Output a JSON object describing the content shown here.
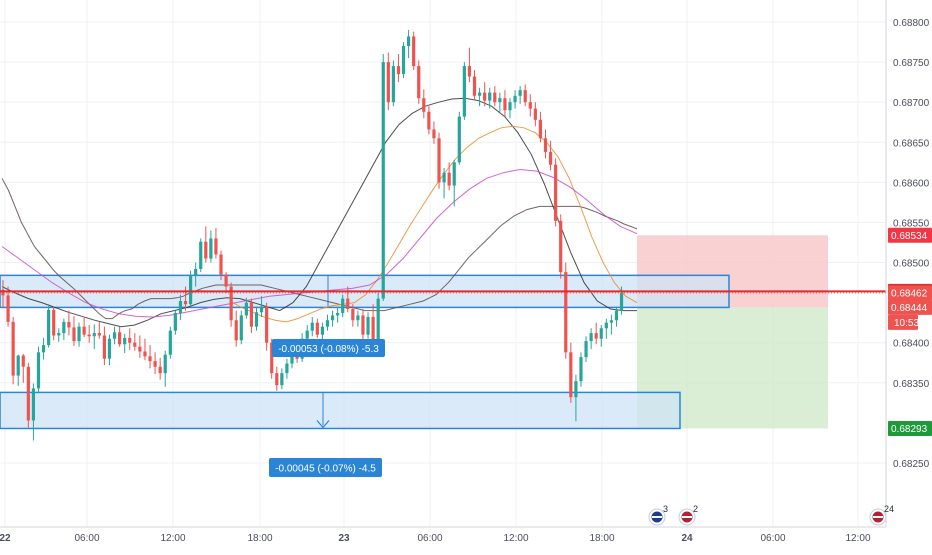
{
  "chart_data": {
    "type": "candlestick",
    "title": "",
    "xlabel": "",
    "ylabel": "",
    "grid": true,
    "ylim": [
      0.6822,
      0.6881
    ],
    "y_ticks": [
      "0.68800",
      "0.68750",
      "0.68700",
      "0.68650",
      "0.68600",
      "0.68550",
      "0.68500",
      "0.68400",
      "0.68350",
      "0.68250"
    ],
    "x_ticks": [
      "22",
      "06:00",
      "12:00",
      "18:00",
      "23",
      "06:00",
      "12:00",
      "18:00",
      "24",
      "06:00",
      "12:00"
    ],
    "price_labels": [
      {
        "value": "0.68534",
        "kind": "stop"
      },
      {
        "value": "0.68464",
        "kind": "line"
      },
      {
        "value": "0.68462",
        "kind": "current"
      },
      {
        "value": "0.68444",
        "kind": "entry"
      },
      {
        "value": "10:53",
        "kind": "countdown"
      },
      {
        "value": "0.68293",
        "kind": "target"
      }
    ],
    "horizontal_line": 0.68464,
    "zones": [
      {
        "name": "upper-zone",
        "top": 0.68484,
        "bottom": 0.68444
      },
      {
        "name": "lower-zone",
        "top": 0.68338,
        "bottom": 0.68293
      }
    ],
    "position": {
      "stop": 0.68534,
      "entry": 0.68444,
      "target": 0.68293
    },
    "measurements": [
      "-0.00053 (-0.08%) -5.3",
      "-0.00045 (-0.07%) -4.5"
    ],
    "event_icons": [
      {
        "flag": "AU",
        "count": "3"
      },
      {
        "flag": "US",
        "count": "2"
      },
      {
        "flag": "US",
        "count": "24"
      }
    ],
    "colors": {
      "up": "#26a69a",
      "down": "#ef5350",
      "zone_fill": "#cfe3f5",
      "zone_line": "#2a85d6",
      "hline": "#e32b2b",
      "stop_fill": "#f7c6c7",
      "target_fill": "#cfeac9",
      "label_stop": "#f23645",
      "label_target": "#1e9a3a",
      "label_blue": "#2a85d6"
    },
    "candles": [
      [
        0.68466,
        0.68478,
        0.68443,
        0.68459
      ],
      [
        0.68459,
        0.6847,
        0.6842,
        0.68426
      ],
      [
        0.68426,
        0.68432,
        0.68348,
        0.68359
      ],
      [
        0.68359,
        0.68385,
        0.68346,
        0.68384
      ],
      [
        0.68384,
        0.68386,
        0.6835,
        0.6837
      ],
      [
        0.6837,
        0.68375,
        0.68294,
        0.68303
      ],
      [
        0.68303,
        0.68349,
        0.68278,
        0.68343
      ],
      [
        0.68343,
        0.68395,
        0.68337,
        0.68388
      ],
      [
        0.68388,
        0.68406,
        0.68379,
        0.68397
      ],
      [
        0.68397,
        0.68448,
        0.68394,
        0.68441
      ],
      [
        0.68441,
        0.68445,
        0.68403,
        0.68409
      ],
      [
        0.68409,
        0.68418,
        0.68401,
        0.68412
      ],
      [
        0.68412,
        0.6843,
        0.68403,
        0.68426
      ],
      [
        0.68426,
        0.6844,
        0.68409,
        0.68419
      ],
      [
        0.68419,
        0.68433,
        0.68396,
        0.68402
      ],
      [
        0.68402,
        0.68425,
        0.68395,
        0.6842
      ],
      [
        0.6842,
        0.68431,
        0.68407,
        0.6841
      ],
      [
        0.6841,
        0.68422,
        0.684,
        0.68408
      ],
      [
        0.68408,
        0.68423,
        0.68392,
        0.68412
      ],
      [
        0.68412,
        0.68426,
        0.68405,
        0.68409
      ],
      [
        0.68409,
        0.6842,
        0.68372,
        0.6838
      ],
      [
        0.6838,
        0.6841,
        0.68372,
        0.68405
      ],
      [
        0.68405,
        0.6842,
        0.68398,
        0.68413
      ],
      [
        0.68413,
        0.6842,
        0.68395,
        0.68398
      ],
      [
        0.68398,
        0.68411,
        0.68387,
        0.68406
      ],
      [
        0.68406,
        0.68418,
        0.68391,
        0.684
      ],
      [
        0.684,
        0.68412,
        0.6839,
        0.68395
      ],
      [
        0.68395,
        0.68409,
        0.68381,
        0.68389
      ],
      [
        0.68389,
        0.68405,
        0.68378,
        0.68383
      ],
      [
        0.68383,
        0.68397,
        0.68368,
        0.68377
      ],
      [
        0.68377,
        0.68388,
        0.68361,
        0.6837
      ],
      [
        0.6837,
        0.68381,
        0.68354,
        0.68362
      ],
      [
        0.68362,
        0.6839,
        0.68345,
        0.68385
      ],
      [
        0.68385,
        0.6842,
        0.6838,
        0.68415
      ],
      [
        0.68415,
        0.6844,
        0.6841,
        0.68437
      ],
      [
        0.68437,
        0.6846,
        0.68428,
        0.68452
      ],
      [
        0.68452,
        0.6847,
        0.6844,
        0.68448
      ],
      [
        0.68448,
        0.6849,
        0.68445,
        0.68484
      ],
      [
        0.68484,
        0.685,
        0.6847,
        0.68492
      ],
      [
        0.68492,
        0.6853,
        0.68488,
        0.68526
      ],
      [
        0.68526,
        0.68545,
        0.685,
        0.68505
      ],
      [
        0.68505,
        0.6854,
        0.685,
        0.6853
      ],
      [
        0.6853,
        0.68543,
        0.68505,
        0.6851
      ],
      [
        0.6851,
        0.68515,
        0.68478,
        0.68485
      ],
      [
        0.68485,
        0.68488,
        0.68462,
        0.6847
      ],
      [
        0.6847,
        0.68475,
        0.6842,
        0.68428
      ],
      [
        0.68428,
        0.6844,
        0.68395,
        0.68403
      ],
      [
        0.68403,
        0.6844,
        0.68398,
        0.68434
      ],
      [
        0.68434,
        0.68456,
        0.6843,
        0.6845
      ],
      [
        0.6845,
        0.68455,
        0.68412,
        0.6842
      ],
      [
        0.6842,
        0.68445,
        0.68415,
        0.68438
      ],
      [
        0.68438,
        0.68458,
        0.68432,
        0.68445
      ],
      [
        0.68445,
        0.6845,
        0.6839,
        0.684
      ],
      [
        0.684,
        0.68405,
        0.68355,
        0.68362
      ],
      [
        0.68362,
        0.6837,
        0.6834,
        0.68347
      ],
      [
        0.68347,
        0.68368,
        0.68342,
        0.68362
      ],
      [
        0.68362,
        0.6838,
        0.68355,
        0.68374
      ],
      [
        0.68374,
        0.68392,
        0.68368,
        0.68385
      ],
      [
        0.68385,
        0.68398,
        0.68375,
        0.6838
      ],
      [
        0.6838,
        0.68412,
        0.68376,
        0.68405
      ],
      [
        0.68405,
        0.68422,
        0.684,
        0.68415
      ],
      [
        0.68415,
        0.68432,
        0.68408,
        0.68425
      ],
      [
        0.68425,
        0.6843,
        0.68406,
        0.6841
      ],
      [
        0.6841,
        0.68425,
        0.68404,
        0.6842
      ],
      [
        0.6842,
        0.68435,
        0.68415,
        0.68428
      ],
      [
        0.68428,
        0.6844,
        0.6842,
        0.68434
      ],
      [
        0.68434,
        0.68445,
        0.68425,
        0.68437
      ],
      [
        0.68437,
        0.6846,
        0.68432,
        0.68455
      ],
      [
        0.68455,
        0.6847,
        0.68438,
        0.68442
      ],
      [
        0.68442,
        0.68448,
        0.6842,
        0.68428
      ],
      [
        0.68428,
        0.6844,
        0.6842,
        0.68434
      ],
      [
        0.68434,
        0.68442,
        0.68402,
        0.6841
      ],
      [
        0.6841,
        0.68438,
        0.68405,
        0.68432
      ],
      [
        0.68432,
        0.68448,
        0.68395,
        0.684
      ],
      [
        0.684,
        0.68462,
        0.68398,
        0.68455
      ],
      [
        0.68455,
        0.6876,
        0.68452,
        0.6875
      ],
      [
        0.6875,
        0.68762,
        0.6869,
        0.687
      ],
      [
        0.687,
        0.68752,
        0.68695,
        0.68745
      ],
      [
        0.68745,
        0.6876,
        0.68725,
        0.68735
      ],
      [
        0.68735,
        0.68775,
        0.6873,
        0.6877
      ],
      [
        0.6877,
        0.6879,
        0.68755,
        0.68782
      ],
      [
        0.68782,
        0.68788,
        0.6874,
        0.68745
      ],
      [
        0.68745,
        0.68752,
        0.68698,
        0.68705
      ],
      [
        0.68705,
        0.68716,
        0.6868,
        0.68688
      ],
      [
        0.68688,
        0.68695,
        0.6866,
        0.68666
      ],
      [
        0.68666,
        0.68676,
        0.68648,
        0.68655
      ],
      [
        0.68655,
        0.68662,
        0.68592,
        0.686
      ],
      [
        0.686,
        0.68618,
        0.6858,
        0.68612
      ],
      [
        0.68612,
        0.68625,
        0.6859,
        0.68596
      ],
      [
        0.68596,
        0.68628,
        0.6857,
        0.68625
      ],
      [
        0.68625,
        0.68688,
        0.68622,
        0.68682
      ],
      [
        0.68682,
        0.6875,
        0.68678,
        0.68745
      ],
      [
        0.68745,
        0.68768,
        0.68725,
        0.68732
      ],
      [
        0.68732,
        0.6874,
        0.68702,
        0.68708
      ],
      [
        0.68708,
        0.68718,
        0.68695,
        0.68712
      ],
      [
        0.68712,
        0.68725,
        0.68695,
        0.68702
      ],
      [
        0.68702,
        0.68718,
        0.68692,
        0.68712
      ],
      [
        0.68712,
        0.6872,
        0.68695,
        0.687
      ],
      [
        0.687,
        0.68712,
        0.68688,
        0.68705
      ],
      [
        0.68705,
        0.68715,
        0.68682,
        0.6869
      ],
      [
        0.6869,
        0.68705,
        0.6868,
        0.687
      ],
      [
        0.687,
        0.68715,
        0.68692,
        0.68708
      ],
      [
        0.68708,
        0.6872,
        0.68698,
        0.68715
      ],
      [
        0.68715,
        0.68722,
        0.68695,
        0.687
      ],
      [
        0.687,
        0.6871,
        0.68682,
        0.68692
      ],
      [
        0.68692,
        0.687,
        0.6867,
        0.68678
      ],
      [
        0.68678,
        0.68688,
        0.6865,
        0.68655
      ],
      [
        0.68655,
        0.68666,
        0.6863,
        0.68638
      ],
      [
        0.68638,
        0.68652,
        0.68615,
        0.68622
      ],
      [
        0.68622,
        0.6863,
        0.68545,
        0.68552
      ],
      [
        0.68552,
        0.6856,
        0.6848,
        0.68488
      ],
      [
        0.68488,
        0.685,
        0.6838,
        0.68388
      ],
      [
        0.68388,
        0.684,
        0.68325,
        0.68332
      ],
      [
        0.68332,
        0.6836,
        0.68302,
        0.68352
      ],
      [
        0.68352,
        0.68388,
        0.68345,
        0.68382
      ],
      [
        0.68382,
        0.68408,
        0.68376,
        0.68402
      ],
      [
        0.68402,
        0.68418,
        0.68392,
        0.68412
      ],
      [
        0.68412,
        0.68425,
        0.68398,
        0.68405
      ],
      [
        0.68405,
        0.68422,
        0.68395,
        0.68418
      ],
      [
        0.68418,
        0.6843,
        0.68405,
        0.68425
      ],
      [
        0.68425,
        0.68435,
        0.6841,
        0.68428
      ],
      [
        0.68428,
        0.68445,
        0.6842,
        0.6844
      ],
      [
        0.6844,
        0.6847,
        0.68435,
        0.68462
      ]
    ],
    "moving_averages": [
      {
        "name": "",
        "color": "#5b4a4a",
        "values": [
          0.68605,
          0.6859,
          0.6857,
          0.6855,
          0.68535,
          0.6852,
          0.6851,
          0.685,
          0.6849,
          0.68482,
          0.68475,
          0.68468,
          0.6846,
          0.68452,
          0.68444,
          0.68436,
          0.6843,
          0.6843,
          0.68436,
          0.6844,
          0.68442,
          0.68448,
          0.68452,
          0.68455,
          0.68455,
          0.68455,
          0.68455,
          0.68456,
          0.68458,
          0.68462,
          0.68465,
          0.68468,
          0.6847,
          0.68472,
          0.68472,
          0.68472,
          0.68472,
          0.68472,
          0.68472,
          0.68472,
          0.68472,
          0.6847,
          0.68468,
          0.68466,
          0.68464,
          0.68462,
          0.6846,
          0.68458,
          0.68456,
          0.68454,
          0.68452,
          0.6845,
          0.68448,
          0.68446,
          0.68444,
          0.68442,
          0.6844,
          0.6844,
          0.6844,
          0.6844,
          0.68442,
          0.68444,
          0.68446,
          0.68448,
          0.6845,
          0.68452,
          0.68456,
          0.6846,
          0.68468,
          0.68476,
          0.68486,
          0.68496,
          0.68506,
          0.68514,
          0.68522,
          0.6853,
          0.68538,
          0.68546,
          0.68552,
          0.68558,
          0.68562,
          0.68566,
          0.68568,
          0.6857,
          0.6857,
          0.6857,
          0.6857,
          0.6857,
          0.6857,
          0.6857,
          0.68568,
          0.68565,
          0.68562,
          0.68558,
          0.68555,
          0.68552,
          0.68548,
          0.68545,
          0.68542
        ]
      },
      {
        "name": "",
        "color": "#2e2e2e",
        "values": [
          0.6847,
          0.68462,
          0.68455,
          0.6845,
          0.68444,
          0.68438,
          0.68433,
          0.68428,
          0.68424,
          0.6842,
          0.68422,
          0.68428,
          0.68436,
          0.6844,
          0.68444,
          0.6845,
          0.68454,
          0.68456,
          0.68455,
          0.6845,
          0.68445,
          0.6844,
          0.6845,
          0.6847,
          0.685,
          0.6853,
          0.6856,
          0.6859,
          0.6862,
          0.6865,
          0.68672,
          0.68686,
          0.68695,
          0.687,
          0.68704,
          0.68705,
          0.68702,
          0.68695,
          0.68682,
          0.68662,
          0.68635,
          0.68598,
          0.68555,
          0.68512,
          0.68475,
          0.68452,
          0.68442,
          0.6844,
          0.6844
        ]
      },
      {
        "name": "",
        "color": "#e98c2e",
        "values": [
          0.68452,
          0.68444,
          0.68438,
          0.68432,
          0.68428,
          0.68426,
          0.6843,
          0.68436,
          0.68442,
          0.68446,
          0.68448,
          0.6845,
          0.6846,
          0.68478,
          0.685,
          0.68524,
          0.68548,
          0.6857,
          0.68592,
          0.68612,
          0.6863,
          0.68644,
          0.68655,
          0.68662,
          0.68668,
          0.6867,
          0.68668,
          0.68662,
          0.6865,
          0.68632,
          0.68605,
          0.6857,
          0.68532,
          0.685,
          0.68475,
          0.68458,
          0.6845
        ]
      },
      {
        "name": "",
        "color": "#c94ac9",
        "values": [
          0.6852,
          0.68505,
          0.6849,
          0.68475,
          0.68462,
          0.6845,
          0.68442,
          0.68436,
          0.68433,
          0.68432,
          0.68434,
          0.68438,
          0.68442,
          0.68446,
          0.6845,
          0.68454,
          0.68458,
          0.6846,
          0.68462,
          0.68464,
          0.68466,
          0.68468,
          0.68472,
          0.68485,
          0.68505,
          0.6853,
          0.68555,
          0.68575,
          0.68592,
          0.68605,
          0.68612,
          0.68616,
          0.68614,
          0.68606,
          0.68594,
          0.68578,
          0.6856,
          0.68545,
          0.68536
        ]
      }
    ]
  }
}
